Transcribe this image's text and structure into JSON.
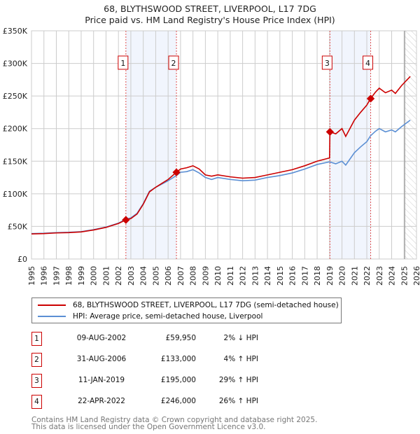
{
  "chart_data": {
    "type": "line",
    "title": "68, BLYTHSWOOD STREET, LIVERPOOL, L17 7DG",
    "subtitle": "Price paid vs. HM Land Registry's House Price Index (HPI)",
    "xlim": [
      1995,
      2026
    ],
    "ylim": [
      0,
      350000
    ],
    "x_ticks": [
      "1995",
      "1996",
      "1997",
      "1998",
      "1999",
      "2000",
      "2001",
      "2002",
      "2003",
      "2004",
      "2005",
      "2006",
      "2007",
      "2008",
      "2009",
      "2010",
      "2011",
      "2012",
      "2013",
      "2014",
      "2015",
      "2016",
      "2017",
      "2018",
      "2019",
      "2020",
      "2021",
      "2022",
      "2023",
      "2024",
      "2025",
      "2026"
    ],
    "y_ticks": [
      {
        "v": 0,
        "label": "£0"
      },
      {
        "v": 50000,
        "label": "£50K"
      },
      {
        "v": 100000,
        "label": "£100K"
      },
      {
        "v": 150000,
        "label": "£150K"
      },
      {
        "v": 200000,
        "label": "£200K"
      },
      {
        "v": 250000,
        "label": "£250K"
      },
      {
        "v": 300000,
        "label": "£300K"
      },
      {
        "v": 350000,
        "label": "£350K"
      }
    ],
    "grid": true,
    "series": [
      {
        "name": "68, BLYTHSWOOD STREET, LIVERPOOL, L17 7DG (semi-detached house)",
        "color": "#cc0000",
        "x": [
          1995,
          1996,
          1997,
          1998,
          1999,
          2000,
          2001,
          2002,
          2002.6,
          2003,
          2003.5,
          2004,
          2004.5,
          2005,
          2005.5,
          2006,
          2006.67,
          2007,
          2007.5,
          2008,
          2008.5,
          2009,
          2009.5,
          2010,
          2011,
          2012,
          2013,
          2014,
          2015,
          2016,
          2017,
          2018,
          2019.0,
          2019.03,
          2019.5,
          2020,
          2020.3,
          2021,
          2021.5,
          2022,
          2022.3,
          2022.7,
          2023,
          2023.5,
          2024,
          2024.3,
          2024.8,
          2025.5
        ],
        "y": [
          38500,
          39000,
          40000,
          40500,
          41500,
          44500,
          48500,
          54500,
          59950,
          62000,
          69000,
          84000,
          103000,
          110000,
          116000,
          122000,
          133000,
          138000,
          140000,
          143000,
          138000,
          129000,
          127000,
          129000,
          126000,
          124000,
          125000,
          129000,
          133000,
          137000,
          143000,
          150000,
          155000,
          195000,
          192000,
          200000,
          188000,
          213000,
          225000,
          236000,
          246000,
          256000,
          262000,
          255000,
          259000,
          254000,
          266000,
          280000
        ]
      },
      {
        "name": "HPI: Average price, semi-detached house, Liverpool",
        "color": "#5b8fd4",
        "x": [
          1995,
          1996,
          1997,
          1998,
          1999,
          2000,
          2001,
          2002,
          2002.6,
          2003,
          2003.5,
          2004,
          2004.5,
          2005,
          2005.5,
          2006,
          2006.67,
          2007,
          2007.5,
          2008,
          2008.5,
          2009,
          2009.5,
          2010,
          2011,
          2012,
          2013,
          2014,
          2015,
          2016,
          2017,
          2018,
          2019,
          2019.5,
          2020,
          2020.3,
          2021,
          2021.5,
          2022,
          2022.3,
          2022.7,
          2023,
          2023.5,
          2024,
          2024.3,
          2024.8,
          2025.5
        ],
        "y": [
          39000,
          39500,
          40500,
          41000,
          42000,
          45000,
          49000,
          55000,
          61000,
          63000,
          70000,
          85000,
          104000,
          110000,
          115000,
          120000,
          128000,
          133000,
          134000,
          137000,
          132000,
          125000,
          122000,
          125000,
          122000,
          120000,
          121000,
          125000,
          128000,
          132000,
          138000,
          145000,
          149000,
          146000,
          150000,
          144000,
          163000,
          172000,
          180000,
          189000,
          196000,
          200000,
          195000,
          198000,
          195000,
          203000,
          213000
        ]
      }
    ],
    "sales": [
      {
        "n": "1",
        "x": 2002.6,
        "y": 59950
      },
      {
        "n": "2",
        "x": 2006.67,
        "y": 133000
      },
      {
        "n": "3",
        "x": 2019.03,
        "y": 195000
      },
      {
        "n": "4",
        "x": 2022.31,
        "y": 246000
      }
    ],
    "shaded_ranges": [
      [
        2002.6,
        2006.67
      ],
      [
        2019.03,
        2022.31
      ]
    ],
    "forecast_from": 2025.05,
    "legend_placement": "below"
  },
  "legend": {
    "red": "68, BLYTHSWOOD STREET, LIVERPOOL, L17 7DG (semi-detached house)",
    "blue": "HPI: Average price, semi-detached house, Liverpool"
  },
  "transactions": [
    {
      "n": "1",
      "date": "09-AUG-2002",
      "price": "£59,950",
      "hpi": "2% ↓ HPI"
    },
    {
      "n": "2",
      "date": "31-AUG-2006",
      "price": "£133,000",
      "hpi": "4% ↑ HPI"
    },
    {
      "n": "3",
      "date": "11-JAN-2019",
      "price": "£195,000",
      "hpi": "29% ↑ HPI"
    },
    {
      "n": "4",
      "date": "22-APR-2022",
      "price": "£246,000",
      "hpi": "26% ↑ HPI"
    }
  ],
  "footer": {
    "line1": "Contains HM Land Registry data © Crown copyright and database right 2025.",
    "line2": "This data is licensed under the Open Government Licence v3.0."
  }
}
